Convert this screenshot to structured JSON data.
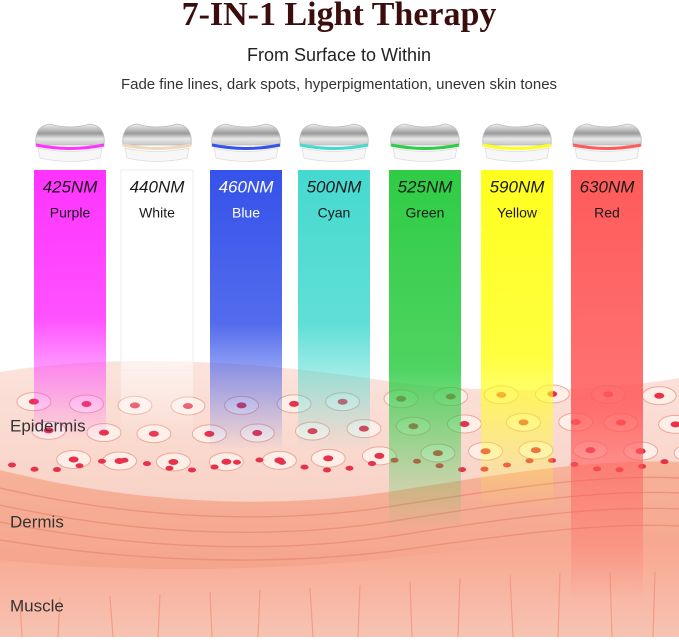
{
  "header": {
    "title": "7-IN-1 Light Therapy",
    "subtitle": "From Surface to Within",
    "tagline": "Fade fine lines, dark spots, hyperpigmentation, uneven skin tones"
  },
  "lights": [
    {
      "wavelength": "425NM",
      "name": "Purple",
      "color": "#ff33ff"
    },
    {
      "wavelength": "440NM",
      "name": "White",
      "color": "#ffffff"
    },
    {
      "wavelength": "460NM",
      "name": "Blue",
      "color": "#3552ea"
    },
    {
      "wavelength": "500NM",
      "name": "Cyan",
      "color": "#45d9cf"
    },
    {
      "wavelength": "525NM",
      "name": "Green",
      "color": "#2fcc45"
    },
    {
      "wavelength": "590NM",
      "name": "Yellow",
      "color": "#ffff1e"
    },
    {
      "wavelength": "630NM",
      "name": "Red",
      "color": "#ff5a5a"
    }
  ],
  "layers": [
    "Epidermis",
    "Dermis",
    "Muscle"
  ]
}
